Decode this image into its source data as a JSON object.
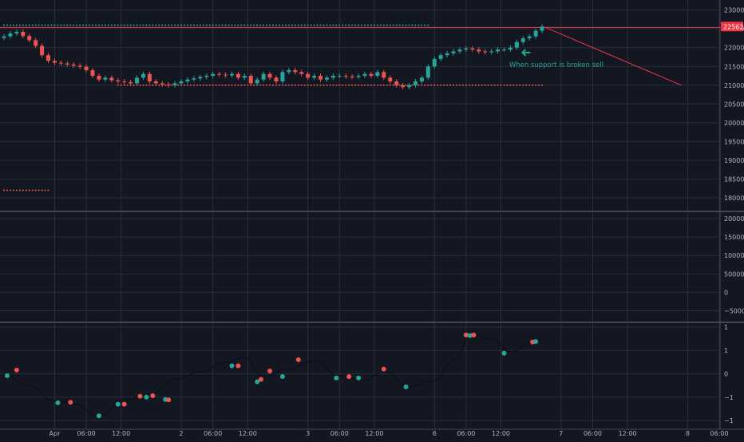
{
  "theme": {
    "background": "#131722",
    "grid": "#2a2e39",
    "axis_text": "#b2b5be",
    "separator": "#434651",
    "up": "#26a69a",
    "down": "#ef5350",
    "trendline": "#f23645",
    "osc_line": "#2a2e39"
  },
  "chart_data": [
    {
      "type": "candlestick",
      "pane": "price",
      "ylim": [
        17700,
        23100
      ],
      "yticks": [
        23000,
        22500,
        22000,
        21500,
        21000,
        20500,
        20000,
        19500,
        19000,
        18500,
        18000
      ],
      "last_price": {
        "label": "22562",
        "value": 22562
      },
      "resistance_level": {
        "value": 22600,
        "t_start": 0,
        "t_end": 67
      },
      "support_level": {
        "value": 21000,
        "t_start": 18,
        "t_end": 85
      },
      "old_support": {
        "value": 18200,
        "t_start": 0,
        "t_end": 7
      },
      "horizontal_line": {
        "value": 22540
      },
      "trendline": {
        "from": {
          "t": 85.5,
          "y": 22540
        },
        "to": {
          "t": 107,
          "y": 21000
        }
      },
      "annotation": {
        "text": "When support is broken sell",
        "t": 79.8,
        "y": 21480,
        "arrow_t": 82.4,
        "arrow_y": 21870
      },
      "closes": [
        22300,
        22380,
        22420,
        22310,
        22200,
        22050,
        21800,
        21650,
        21600,
        21580,
        21550,
        21520,
        21490,
        21400,
        21250,
        21150,
        21200,
        21130,
        21100,
        21080,
        21050,
        21200,
        21300,
        21100,
        21050,
        21020,
        21000,
        21050,
        21100,
        21150,
        21180,
        21220,
        21250,
        21300,
        21280,
        21260,
        21300,
        21200,
        21250,
        21050,
        21150,
        21300,
        21200,
        21100,
        21350,
        21400,
        21350,
        21300,
        21200,
        21250,
        21150,
        21200,
        21250,
        21250,
        21230,
        21220,
        21250,
        21300,
        21250,
        21350,
        21200,
        21100,
        21000,
        20950,
        21000,
        21100,
        21200,
        21500,
        21700,
        21800,
        21850,
        21900,
        21950,
        21980,
        21950,
        21900,
        21880,
        21900,
        21950,
        21950,
        22000,
        22150,
        22250,
        22300,
        22450,
        22562
      ]
    },
    {
      "type": "histogram",
      "pane": "volume",
      "ylim": [
        -77000,
        213000
      ],
      "yticks": [
        200000,
        150000,
        100000,
        50000,
        0,
        -50000
      ],
      "values": []
    },
    {
      "type": "line",
      "pane": "oscillator",
      "ylim": [
        -1.05,
        1.05
      ],
      "yticks": [
        {
          "v": 1,
          "label": "1"
        },
        {
          "v": 0.5,
          "label": "1"
        },
        {
          "v": 0,
          "label": "0"
        },
        {
          "v": -0.5,
          "label": "−1"
        },
        {
          "v": -1,
          "label": "−1"
        }
      ],
      "line": [
        [
          0,
          -0.02
        ],
        [
          4,
          -0.25
        ],
        [
          8,
          -0.58
        ],
        [
          11,
          -0.65
        ],
        [
          15,
          -0.9
        ],
        [
          19,
          -0.55
        ],
        [
          23,
          -0.45
        ],
        [
          27,
          -0.12
        ],
        [
          31,
          0.03
        ],
        [
          35,
          0.25
        ],
        [
          38,
          0.35
        ],
        [
          41,
          -0.05
        ],
        [
          45,
          0.1
        ],
        [
          49,
          0.28
        ],
        [
          53,
          -0.05
        ],
        [
          57,
          -0.13
        ],
        [
          60,
          0.05
        ],
        [
          64,
          -0.28
        ],
        [
          68,
          -0.15
        ],
        [
          71,
          0.3
        ],
        [
          74,
          0.85
        ],
        [
          77,
          0.75
        ],
        [
          80,
          0.48
        ],
        [
          84,
          0.72
        ]
      ],
      "markers": [
        {
          "t": 0.5,
          "v": -0.04,
          "c": "up"
        },
        {
          "t": 2,
          "v": 0.08,
          "c": "down"
        },
        {
          "t": 8.5,
          "v": -0.62,
          "c": "up"
        },
        {
          "t": 10.5,
          "v": -0.61,
          "c": "down"
        },
        {
          "t": 15,
          "v": -0.9,
          "c": "up"
        },
        {
          "t": 18,
          "v": -0.65,
          "c": "up"
        },
        {
          "t": 19,
          "v": -0.65,
          "c": "down"
        },
        {
          "t": 21.5,
          "v": -0.48,
          "c": "down"
        },
        {
          "t": 22.5,
          "v": -0.5,
          "c": "up"
        },
        {
          "t": 23.5,
          "v": -0.47,
          "c": "down"
        },
        {
          "t": 25.5,
          "v": -0.55,
          "c": "up"
        },
        {
          "t": 26,
          "v": -0.56,
          "c": "down"
        },
        {
          "t": 36,
          "v": 0.17,
          "c": "up"
        },
        {
          "t": 37,
          "v": 0.17,
          "c": "down"
        },
        {
          "t": 40,
          "v": -0.17,
          "c": "up"
        },
        {
          "t": 40.6,
          "v": -0.12,
          "c": "down"
        },
        {
          "t": 42,
          "v": 0.06,
          "c": "down"
        },
        {
          "t": 44,
          "v": -0.06,
          "c": "up"
        },
        {
          "t": 46.5,
          "v": 0.3,
          "c": "down"
        },
        {
          "t": 52.5,
          "v": -0.09,
          "c": "up"
        },
        {
          "t": 54.5,
          "v": -0.06,
          "c": "down"
        },
        {
          "t": 56,
          "v": -0.09,
          "c": "up"
        },
        {
          "t": 60,
          "v": 0.1,
          "c": "down"
        },
        {
          "t": 63.5,
          "v": -0.28,
          "c": "up"
        },
        {
          "t": 73,
          "v": 0.83,
          "c": "down"
        },
        {
          "t": 73.6,
          "v": 0.82,
          "c": "up"
        },
        {
          "t": 74.2,
          "v": 0.83,
          "c": "down"
        },
        {
          "t": 79,
          "v": 0.44,
          "c": "up"
        },
        {
          "t": 83.5,
          "v": 0.68,
          "c": "down"
        },
        {
          "t": 84,
          "v": 0.69,
          "c": "up"
        }
      ]
    }
  ],
  "time_axis": {
    "ticks": [
      {
        "t": 8,
        "label": "Apr"
      },
      {
        "t": 13,
        "label": "06:00"
      },
      {
        "t": 18.5,
        "label": "12:00"
      },
      {
        "t": 28,
        "label": "2"
      },
      {
        "t": 33,
        "label": "06:00"
      },
      {
        "t": 38.5,
        "label": "12:00"
      },
      {
        "t": 48,
        "label": "3"
      },
      {
        "t": 53,
        "label": "06:00"
      },
      {
        "t": 58.5,
        "label": "12:00"
      },
      {
        "t": 68,
        "label": "6"
      },
      {
        "t": 73,
        "label": "06:00"
      },
      {
        "t": 78.5,
        "label": "12:00"
      },
      {
        "t": 88,
        "label": "7"
      },
      {
        "t": 93,
        "label": "06:00"
      },
      {
        "t": 98.5,
        "label": "12:00"
      },
      {
        "t": 108,
        "label": "8"
      },
      {
        "t": 113,
        "label": "06:00"
      }
    ]
  }
}
